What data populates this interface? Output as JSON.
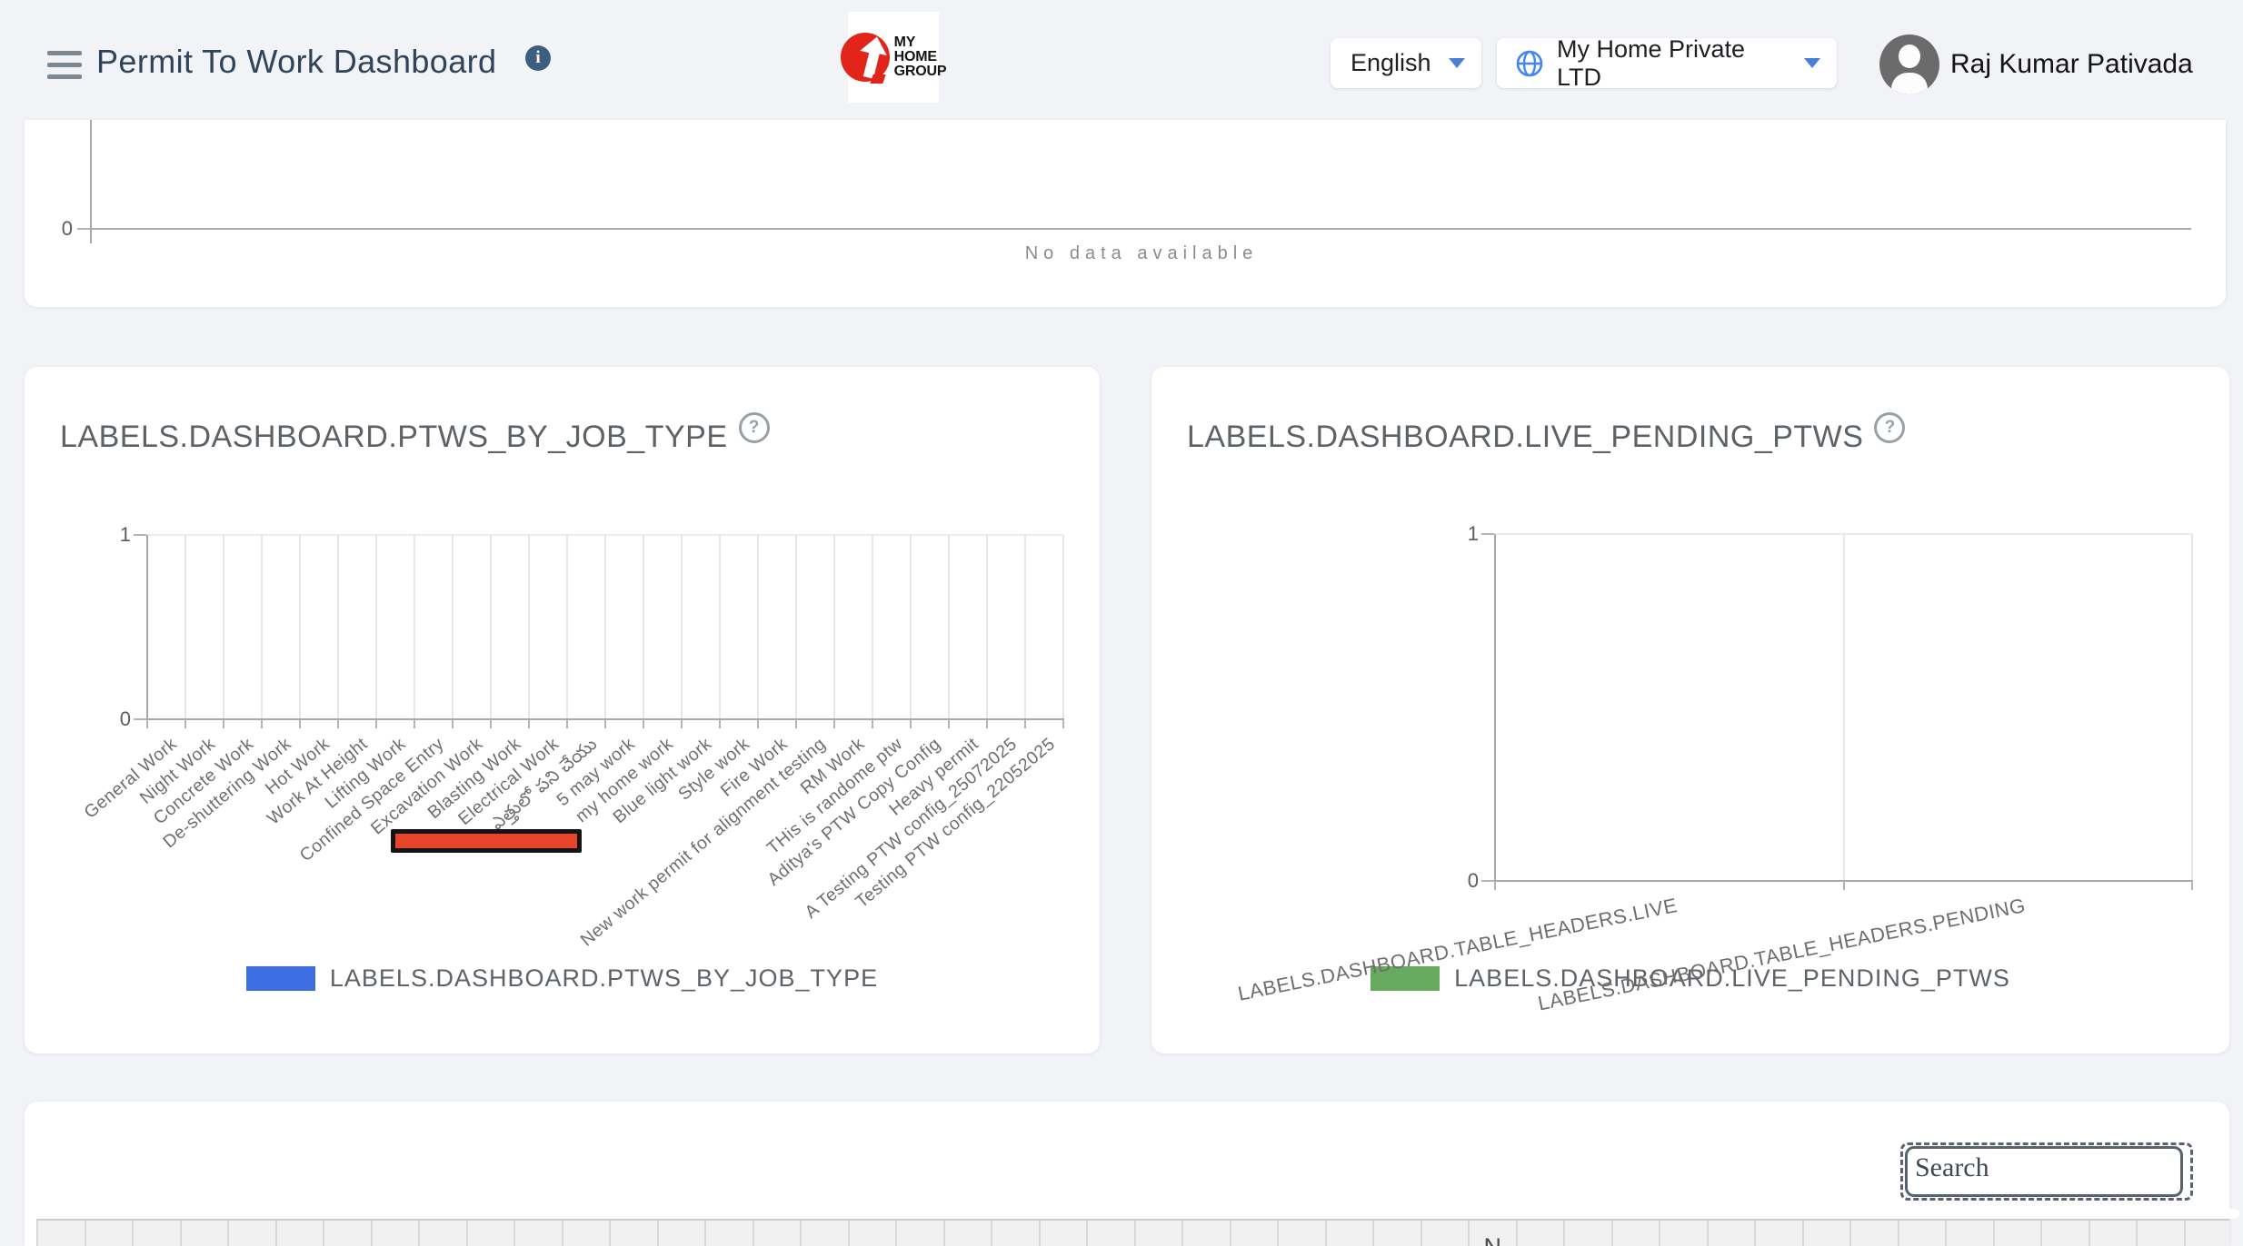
{
  "header": {
    "title": "Permit To Work Dashboard",
    "logo_lines": [
      "MY",
      "HOME",
      "GROUP"
    ],
    "language_value": "English",
    "company_value": "My Home Private LTD",
    "user_name": "Raj Kumar Pativada"
  },
  "colors": {
    "bar_blue": "#3d6ee1",
    "bar_green": "#67a95f",
    "scroll_thumb_red": "#e8442c",
    "caret_blue": "#4a7fd6",
    "globe_blue": "#4285f4",
    "logo_red": "#e1251b"
  },
  "chart_data": [
    {
      "type": "bar",
      "title": "",
      "categories": [],
      "values": [],
      "yticks": [
        "0"
      ],
      "empty_text": "No data available",
      "grid": true,
      "note": "top chart clipped by viewport, axis only"
    },
    {
      "type": "bar",
      "title": "LABELS.DASHBOARD.PTWS_BY_JOB_TYPE",
      "categories": [
        "General Work",
        "Night Work",
        "Concrete Work",
        "De-shuttering Work",
        "Hot Work",
        "Work At Height",
        "Lifting Work",
        "Confined Space Entry",
        "Excavation Work",
        "Blasting Work",
        "Electrical Work",
        "ఎత్తులో పని చేయు",
        "5 may work",
        "my home work",
        "Blue light work",
        "Style work",
        "Fire Work",
        "New work permit for alignment testing",
        "RM Work",
        "THis is randome ptw",
        "Aditya's PTW Copy Config",
        "Heavy permit",
        "A Testing PTW config_25072025",
        "Testing PTW config_22052025"
      ],
      "values": [
        0,
        0,
        0,
        0,
        0,
        0,
        0,
        0,
        0,
        0,
        0,
        0,
        0,
        0,
        0,
        0,
        0,
        0,
        0,
        0,
        0,
        0,
        0,
        0
      ],
      "ylim": [
        0,
        1
      ],
      "yticks": [
        "1",
        "0"
      ],
      "legend": "LABELS.DASHBOARD.PTWS_BY_JOB_TYPE",
      "legend_position": "bottom",
      "color": "#3d6ee1",
      "grid": true
    },
    {
      "type": "bar",
      "title": "LABELS.DASHBOARD.LIVE_PENDING_PTWS",
      "categories": [
        "LABELS.DASHBOARD.TABLE_HEADERS.LIVE",
        "LABELS.DASHBOARD.TABLE_HEADERS.PENDING"
      ],
      "values": [
        0,
        0
      ],
      "ylim": [
        0,
        1
      ],
      "yticks": [
        "1",
        "0"
      ],
      "legend": "LABELS.DASHBOARD.LIVE_PENDING_PTWS",
      "legend_position": "bottom",
      "color": "#67a95f",
      "grid": true
    }
  ],
  "search": {
    "placeholder": "Search"
  },
  "table": {
    "column_count": 46,
    "header_fragment": "N",
    "header_fragment_column": 30
  },
  "icons": {
    "info": "i",
    "help": "?"
  }
}
